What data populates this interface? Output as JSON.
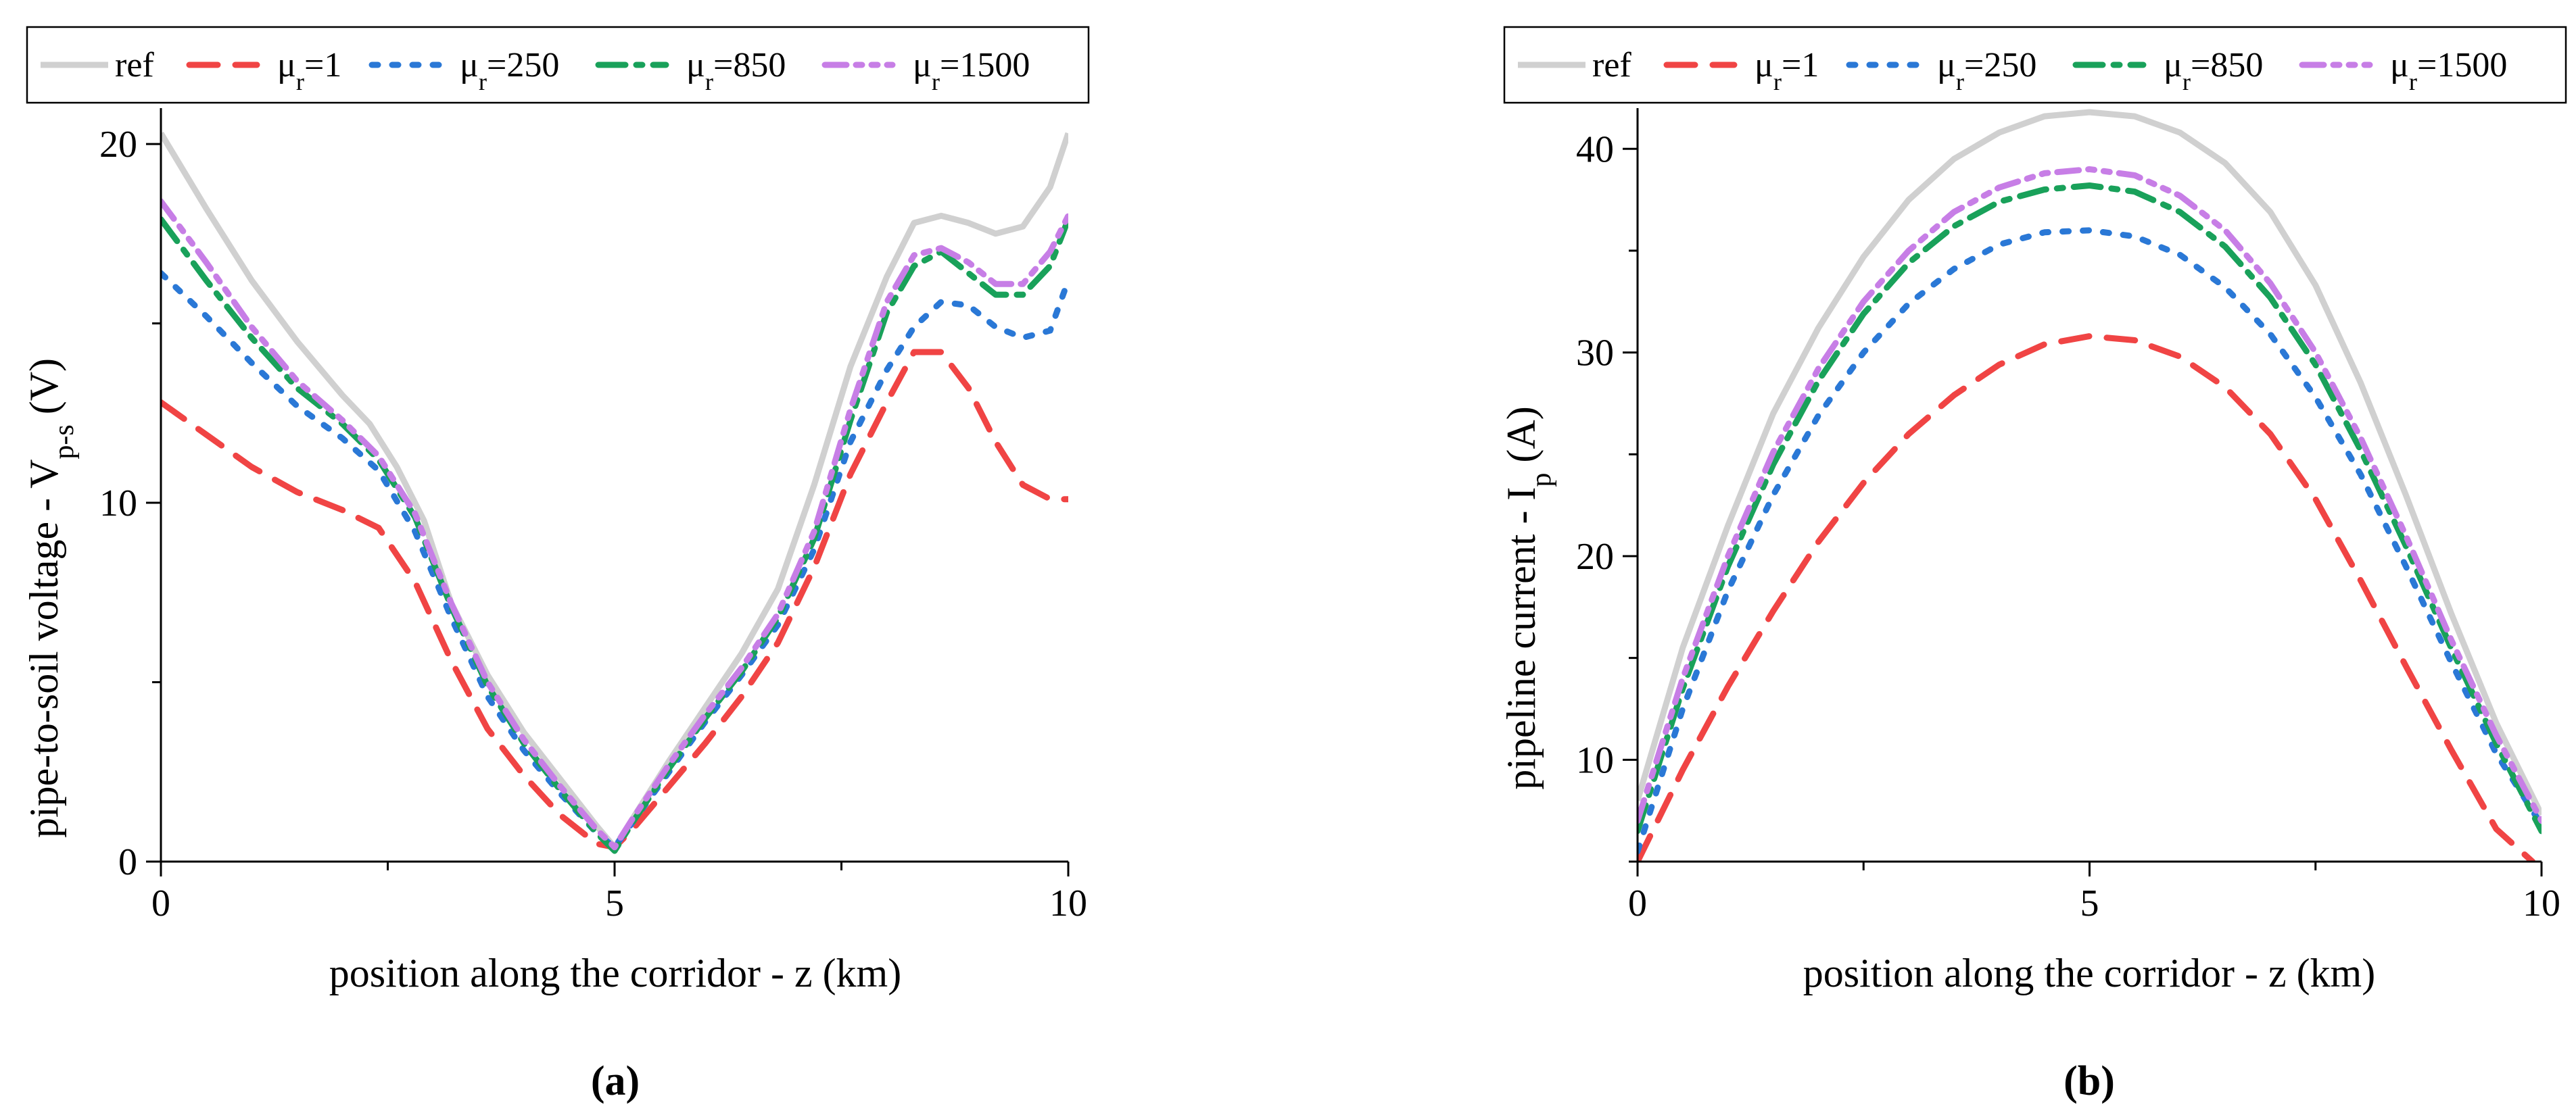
{
  "colors": {
    "ref": "#d0d0d0",
    "mu1": "#f04444",
    "mu250": "#2a78d6",
    "mu850": "#19a15a",
    "mu1500": "#c77ee6",
    "axis": "#000000"
  },
  "legend_labels": {
    "ref": "ref",
    "mu1": "μr=1",
    "mu250": "μr=250",
    "mu850": "μr=850",
    "mu1500": "μr=1500"
  },
  "chart_data": [
    {
      "type": "line",
      "panel_label": "(a)",
      "panel_letter": "a",
      "xlabel": "position along the corridor - z (km)",
      "ylabel": "pipe-to-soil voltage - Vp-s (V)",
      "xlim": [
        0,
        10
      ],
      "ylim": [
        0,
        21
      ],
      "xticks": [
        0,
        5,
        10
      ],
      "yticks": [
        0,
        10,
        20
      ],
      "xtick_labels": [
        "0",
        "5",
        "10"
      ],
      "ytick_labels": [
        "0",
        "10",
        "20"
      ],
      "legend_position": "top",
      "series": [
        {
          "key": "ref",
          "name": "ref",
          "x": [
            0,
            0.5,
            1,
            1.5,
            2,
            2.3,
            2.6,
            2.9,
            3.2,
            3.6,
            4,
            4.4,
            4.8,
            5,
            5.2,
            5.6,
            6,
            6.4,
            6.8,
            7.2,
            7.6,
            8,
            8.3,
            8.6,
            8.9,
            9.2,
            9.5,
            9.8,
            10
          ],
          "y": [
            20.3,
            18.2,
            16.2,
            14.5,
            13.0,
            12.2,
            11.0,
            9.5,
            7.2,
            5.2,
            3.6,
            2.3,
            1.0,
            0.4,
            1.2,
            2.8,
            4.3,
            5.8,
            7.6,
            10.5,
            13.8,
            16.3,
            17.8,
            18.0,
            17.8,
            17.5,
            17.7,
            18.8,
            20.3
          ]
        },
        {
          "key": "mu1",
          "name": "μr=1",
          "x": [
            0,
            0.5,
            1,
            1.5,
            2,
            2.4,
            2.8,
            3.2,
            3.6,
            4,
            4.4,
            4.8,
            5,
            5.2,
            5.6,
            6,
            6.4,
            6.8,
            7.2,
            7.6,
            8,
            8.3,
            8.6,
            8.9,
            9.2,
            9.5,
            9.8,
            10
          ],
          "y": [
            12.8,
            11.9,
            11.0,
            10.3,
            9.8,
            9.3,
            7.8,
            5.6,
            3.7,
            2.4,
            1.3,
            0.5,
            0.4,
            0.9,
            2.1,
            3.3,
            4.6,
            6.1,
            8.2,
            10.8,
            12.8,
            14.2,
            14.2,
            13.2,
            11.7,
            10.5,
            10.1,
            10.1
          ]
        },
        {
          "key": "mu250",
          "name": "μr=250",
          "x": [
            0,
            0.5,
            1,
            1.5,
            2,
            2.4,
            2.8,
            3.2,
            3.6,
            4,
            4.4,
            4.8,
            5,
            5.2,
            5.6,
            6,
            6.4,
            6.8,
            7.2,
            7.6,
            8,
            8.3,
            8.6,
            8.9,
            9.2,
            9.5,
            9.8,
            10
          ],
          "y": [
            16.4,
            15.2,
            13.9,
            12.7,
            11.8,
            10.9,
            9.2,
            6.8,
            4.6,
            3.1,
            1.9,
            0.8,
            0.4,
            1.1,
            2.5,
            3.9,
            5.2,
            6.6,
            8.7,
            11.7,
            13.7,
            14.9,
            15.6,
            15.5,
            14.9,
            14.6,
            14.8,
            16.2
          ]
        },
        {
          "key": "mu850",
          "name": "μr=850",
          "x": [
            0,
            0.5,
            1,
            1.5,
            2,
            2.4,
            2.8,
            3.2,
            3.6,
            4,
            4.4,
            4.8,
            5,
            5.2,
            5.6,
            6,
            6.4,
            6.8,
            7.2,
            7.6,
            8,
            8.3,
            8.6,
            8.9,
            9.2,
            9.5,
            9.8,
            10
          ],
          "y": [
            17.9,
            16.2,
            14.6,
            13.2,
            12.2,
            11.2,
            9.6,
            7.1,
            4.9,
            3.3,
            2.0,
            0.8,
            0.3,
            1.1,
            2.6,
            4.0,
            5.3,
            6.8,
            9.0,
            12.3,
            15.3,
            16.6,
            17.0,
            16.4,
            15.8,
            15.8,
            16.6,
            17.9
          ]
        },
        {
          "key": "mu1500",
          "name": "μr=1500",
          "x": [
            0,
            0.5,
            1,
            1.5,
            2,
            2.4,
            2.8,
            3.2,
            3.6,
            4,
            4.4,
            4.8,
            5,
            5.2,
            5.6,
            6,
            6.4,
            6.8,
            7.2,
            7.6,
            8,
            8.3,
            8.6,
            8.9,
            9.2,
            9.5,
            9.8,
            10
          ],
          "y": [
            18.4,
            16.7,
            14.9,
            13.4,
            12.3,
            11.3,
            9.7,
            7.2,
            5.0,
            3.4,
            2.1,
            0.9,
            0.4,
            1.2,
            2.7,
            4.1,
            5.4,
            6.9,
            9.2,
            12.6,
            15.6,
            16.9,
            17.1,
            16.7,
            16.1,
            16.1,
            17.0,
            18.0
          ]
        }
      ]
    },
    {
      "type": "line",
      "panel_label": "(b)",
      "panel_letter": "b",
      "xlabel": "position along the corridor - z (km)",
      "ylabel": "pipeline current - Ip (A)",
      "xlim": [
        0,
        10
      ],
      "ylim": [
        5,
        42
      ],
      "xticks": [
        0,
        5,
        10
      ],
      "yticks": [
        10,
        20,
        30,
        40
      ],
      "xtick_labels": [
        "0",
        "5",
        "10"
      ],
      "ytick_labels": [
        "10",
        "20",
        "30",
        "40"
      ],
      "legend_position": "top",
      "series": [
        {
          "key": "ref",
          "name": "ref",
          "x": [
            0,
            0.5,
            1,
            1.5,
            2,
            2.5,
            3,
            3.5,
            4,
            4.5,
            5,
            5.5,
            6,
            6.5,
            7,
            7.5,
            8,
            8.5,
            9,
            9.5,
            10
          ],
          "y": [
            8.0,
            15.5,
            21.5,
            27.0,
            31.2,
            34.7,
            37.5,
            39.5,
            40.8,
            41.6,
            41.8,
            41.6,
            40.8,
            39.3,
            36.9,
            33.3,
            28.5,
            23.0,
            17.2,
            11.8,
            7.3
          ]
        },
        {
          "key": "mu1",
          "name": "μr=1",
          "x": [
            0,
            0.5,
            1,
            1.5,
            2,
            2.5,
            3,
            3.5,
            4,
            4.5,
            5,
            5.5,
            6,
            6.5,
            7,
            7.5,
            8,
            8.5,
            9,
            9.5,
            9.9
          ],
          "y": [
            5.0,
            9.5,
            13.6,
            17.3,
            20.7,
            23.6,
            26.0,
            27.9,
            29.4,
            30.4,
            30.8,
            30.6,
            29.8,
            28.3,
            26.0,
            22.8,
            18.8,
            14.6,
            10.5,
            6.6,
            5.0
          ]
        },
        {
          "key": "mu250",
          "name": "μr=250",
          "x": [
            0,
            0.5,
            1,
            1.5,
            2,
            2.5,
            3,
            3.5,
            4,
            4.5,
            5,
            5.5,
            6,
            6.5,
            7,
            7.5,
            8,
            8.5,
            9,
            9.5,
            10
          ],
          "y": [
            5.5,
            12.5,
            18.3,
            23.0,
            26.9,
            30.0,
            32.4,
            34.1,
            35.3,
            35.9,
            36.0,
            35.7,
            34.8,
            33.2,
            30.9,
            27.8,
            24.0,
            19.5,
            14.8,
            10.3,
            6.8
          ]
        },
        {
          "key": "mu850",
          "name": "μr=850",
          "x": [
            0,
            0.5,
            1,
            1.5,
            2,
            2.5,
            3,
            3.5,
            4,
            4.5,
            5,
            5.5,
            6,
            6.5,
            7,
            7.5,
            8,
            8.5,
            9,
            9.5,
            10
          ],
          "y": [
            6.5,
            13.5,
            19.5,
            24.5,
            28.6,
            31.9,
            34.4,
            36.2,
            37.4,
            38.0,
            38.2,
            37.9,
            36.9,
            35.2,
            32.7,
            29.4,
            25.2,
            20.5,
            15.5,
            10.8,
            6.5
          ]
        },
        {
          "key": "mu1500",
          "name": "μr=1500",
          "x": [
            0,
            0.5,
            1,
            1.5,
            2,
            2.5,
            3,
            3.5,
            4,
            4.5,
            5,
            5.5,
            6,
            6.5,
            7,
            7.5,
            8,
            8.5,
            9,
            9.5,
            10
          ],
          "y": [
            7.0,
            14.0,
            20.0,
            25.1,
            29.2,
            32.5,
            35.0,
            36.9,
            38.1,
            38.8,
            39.0,
            38.7,
            37.7,
            36.0,
            33.4,
            30.0,
            25.8,
            21.0,
            15.9,
            11.2,
            7.0
          ]
        }
      ]
    }
  ]
}
